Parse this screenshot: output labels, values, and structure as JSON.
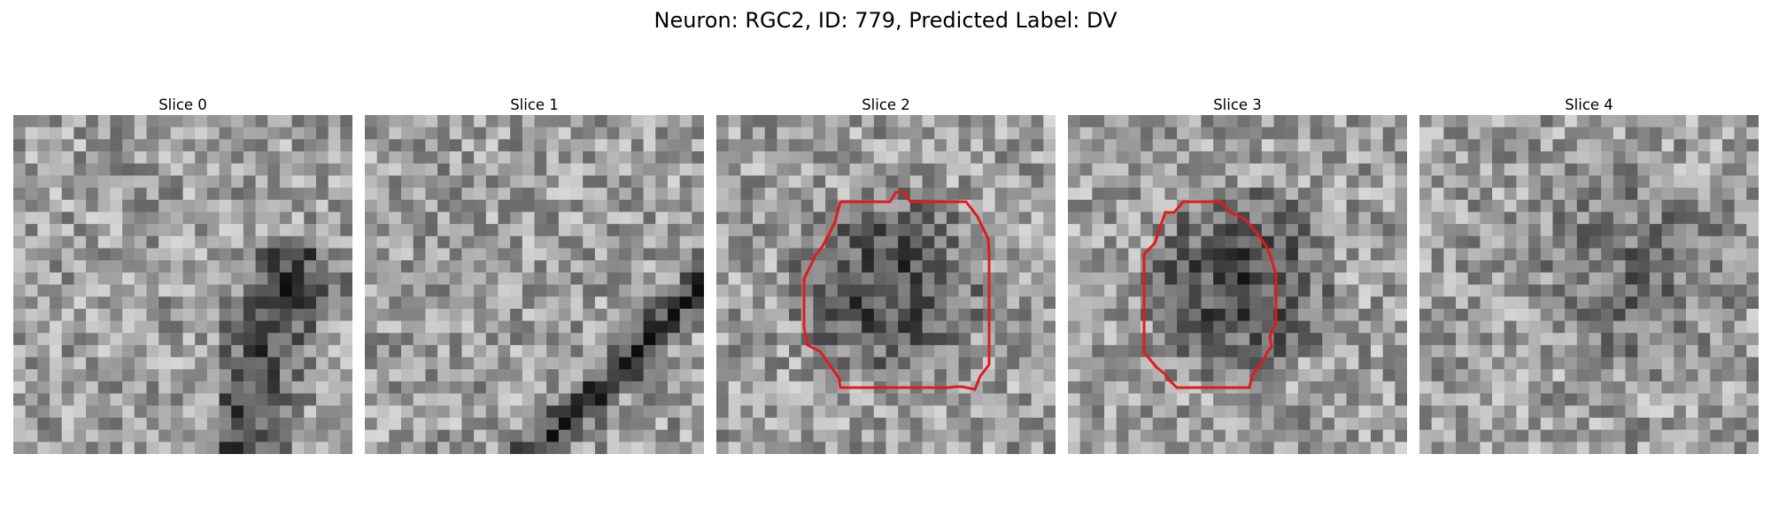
{
  "figure": {
    "title": "Neuron: RGC2, ID: 779, Predicted Label: DV"
  },
  "panels": [
    {
      "title": "Slice 0",
      "contour": false,
      "seed": 11,
      "dark": "diagonal-right"
    },
    {
      "title": "Slice 1",
      "contour": false,
      "seed": 23,
      "dark": "diagonal-band"
    },
    {
      "title": "Slice 2",
      "contour": true,
      "seed": 37,
      "dark": "blob"
    },
    {
      "title": "Slice 3",
      "contour": true,
      "seed": 53,
      "dark": "blob"
    },
    {
      "title": "Slice 4",
      "contour": false,
      "seed": 71,
      "dark": "diffuse"
    }
  ],
  "contour_color": "#e31a1c",
  "colormap": "grayscale"
}
